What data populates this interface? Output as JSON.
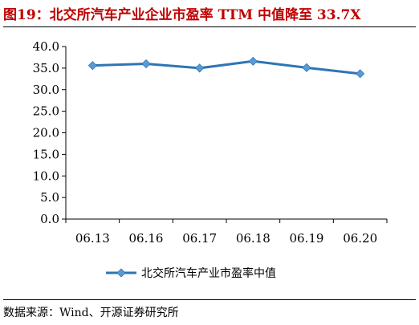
{
  "title": "图19：北交所汽车产业企业市盈率 TTM 中值降至 33.7X",
  "source": "数据来源：Wind、开源证券研究所",
  "colors": {
    "title": "#c00000",
    "series": "#2e75b6",
    "marker": "#5b9bd5"
  },
  "chart_data": {
    "type": "line",
    "categories": [
      "06.13",
      "06.16",
      "06.17",
      "06.18",
      "06.19",
      "06.20"
    ],
    "series": [
      {
        "name": "北交所汽车产业市盈率中值",
        "values": [
          35.6,
          36.0,
          35.0,
          36.6,
          35.1,
          33.7
        ]
      }
    ],
    "ylim": [
      0,
      40
    ],
    "yticks": [
      "0.0",
      "5.0",
      "10.0",
      "15.0",
      "20.0",
      "25.0",
      "30.0",
      "35.0",
      "40.0"
    ],
    "grid": false,
    "legend_position": "bottom",
    "marker": "diamond"
  }
}
